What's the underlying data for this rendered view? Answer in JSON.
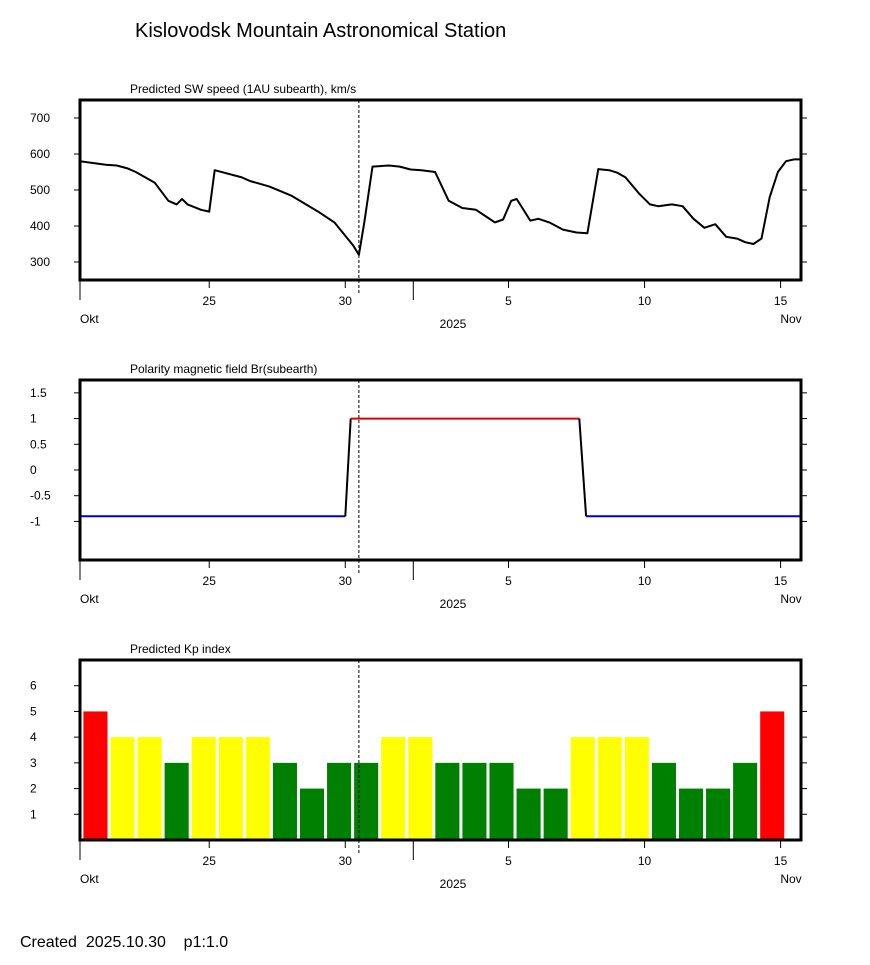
{
  "header": {
    "title": "Kislovodsk Mountain Astronomical Station"
  },
  "footer": {
    "created_label": "Created",
    "created_date": "2025.10.30",
    "page": "p1:1.0"
  },
  "colors": {
    "kp_red": "#ff0000",
    "kp_yellow": "#ffff00",
    "kp_green": "#008000",
    "pol_positive": "#e00000",
    "pol_negative": "#0000cc",
    "line": "#000000"
  },
  "x_axis": {
    "start_day": 20.25,
    "end_day": 46.75,
    "ticks": [
      {
        "day": 25,
        "label": "25"
      },
      {
        "day": 30,
        "label": "30"
      },
      {
        "day": 36,
        "label": "5"
      },
      {
        "day": 41,
        "label": "10"
      },
      {
        "day": 46,
        "label": "15"
      }
    ],
    "minor_ticks": [
      20.25,
      32.5
    ],
    "now_day": 30.5,
    "left_label": "Okt",
    "center_label": "2025",
    "right_label": "Nov"
  },
  "chart_data": [
    {
      "type": "line",
      "title": "Predicted SW speed (1AU subearth), km/s",
      "ylim": [
        250,
        750
      ],
      "yticks": [
        300,
        400,
        500,
        600,
        700
      ],
      "series": [
        {
          "name": "SW speed",
          "x": [
            20.25,
            21.2,
            21.6,
            22.0,
            22.3,
            23.0,
            23.5,
            23.8,
            24.0,
            24.2,
            24.7,
            25.0,
            25.2,
            26.2,
            26.5,
            27.2,
            28.0,
            29.0,
            29.6,
            30.3,
            30.5,
            30.7,
            31.0,
            31.6,
            32.0,
            32.4,
            32.8,
            33.3,
            33.8,
            34.3,
            34.8,
            35.2,
            35.5,
            35.8,
            36.1,
            36.3,
            36.8,
            37.1,
            37.5,
            38.0,
            38.5,
            38.9,
            39.3,
            39.7,
            40.0,
            40.3,
            40.8,
            41.2,
            41.5,
            42.0,
            42.4,
            42.8,
            43.2,
            43.6,
            44.0,
            44.4,
            44.7,
            45.0,
            45.3,
            45.6,
            45.9,
            46.2,
            46.5,
            46.75
          ],
          "values": [
            580,
            570,
            568,
            560,
            550,
            520,
            470,
            460,
            475,
            460,
            445,
            440,
            555,
            535,
            525,
            510,
            485,
            440,
            410,
            345,
            320,
            410,
            565,
            568,
            565,
            557,
            555,
            550,
            470,
            450,
            445,
            425,
            410,
            418,
            470,
            475,
            415,
            420,
            410,
            390,
            382,
            380,
            558,
            555,
            548,
            535,
            490,
            460,
            455,
            460,
            455,
            420,
            395,
            405,
            370,
            365,
            355,
            350,
            365,
            480,
            550,
            580,
            585,
            585
          ]
        }
      ]
    },
    {
      "type": "line",
      "title": "Polarity magnetic field  Br(subearth)",
      "ylim": [
        -1.75,
        1.75
      ],
      "yticks": [
        1.5,
        1,
        0.5,
        0,
        -0.5,
        -1
      ],
      "ytick_labels": [
        "1.5",
        "1",
        "0.5",
        "0",
        "-0.5",
        "-1"
      ],
      "series": [
        {
          "name": "negative",
          "color": "#0000cc",
          "x": [
            20.25,
            30.0
          ],
          "values": [
            -0.9,
            -0.9
          ]
        },
        {
          "name": "transition-up",
          "color": "#000000",
          "x": [
            30.0,
            30.2
          ],
          "values": [
            -0.9,
            1.0
          ]
        },
        {
          "name": "positive",
          "color": "#e00000",
          "x": [
            30.2,
            38.6
          ],
          "values": [
            1.0,
            1.0
          ]
        },
        {
          "name": "transition-down",
          "color": "#000000",
          "x": [
            38.6,
            38.85
          ],
          "values": [
            1.0,
            -0.9
          ]
        },
        {
          "name": "negative",
          "color": "#0000cc",
          "x": [
            38.85,
            46.75
          ],
          "values": [
            -0.9,
            -0.9
          ]
        }
      ]
    },
    {
      "type": "bar",
      "title": "Predicted Kp index",
      "ylim": [
        0,
        7
      ],
      "yticks": [
        1,
        2,
        3,
        4,
        5,
        6
      ],
      "bar_start_day": 20.375,
      "bar_step_day": 0.995,
      "values": [
        5,
        4,
        4,
        3,
        4,
        4,
        4,
        3,
        2,
        3,
        3,
        4,
        4,
        3,
        3,
        3,
        2,
        2,
        4,
        4,
        4,
        3,
        2,
        2,
        3,
        5
      ],
      "colors": [
        "red",
        "yellow",
        "yellow",
        "green",
        "yellow",
        "yellow",
        "yellow",
        "green",
        "green",
        "green",
        "green",
        "yellow",
        "yellow",
        "green",
        "green",
        "green",
        "green",
        "green",
        "yellow",
        "yellow",
        "yellow",
        "green",
        "green",
        "green",
        "green",
        "red"
      ]
    }
  ]
}
